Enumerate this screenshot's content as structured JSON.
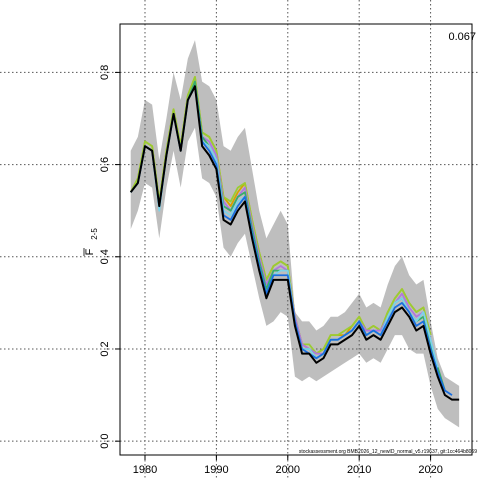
{
  "chart_data": {
    "type": "line",
    "ylabel_main": "F",
    "ylabel_sub": "2-5",
    "corner_value": "0.067",
    "footnote": "stockassessment.org BMB2026_12_newID_normal_v5.r19637, git:1cc464b8069",
    "xlim": [
      1976.5,
      2025.8
    ],
    "ylim": [
      -0.03,
      0.905
    ],
    "grid": "dotted",
    "x_ticks": [
      1980,
      1990,
      2000,
      2010,
      2020
    ],
    "y_ticks": [
      0.0,
      0.2,
      0.4,
      0.6,
      0.8
    ],
    "x_tick_labels": [
      "1980",
      "1990",
      "2000",
      "2010",
      "2020"
    ],
    "y_tick_labels": [
      "0.0",
      "0.2",
      "0.4",
      "0.6",
      "0.8"
    ],
    "years": [
      1978,
      1979,
      1980,
      1981,
      1982,
      1983,
      1984,
      1985,
      1986,
      1987,
      1988,
      1989,
      1990,
      1991,
      1992,
      1993,
      1994,
      1995,
      1996,
      1997,
      1998,
      1999,
      2000,
      2001,
      2002,
      2003,
      2004,
      2005,
      2006,
      2007,
      2008,
      2009,
      2010,
      2011,
      2012,
      2013,
      2014,
      2015,
      2016,
      2017,
      2018,
      2019,
      2020,
      2021,
      2022,
      2023,
      2024
    ],
    "band": {
      "color": "#bebebe",
      "upper": [
        0.63,
        0.66,
        0.74,
        0.73,
        0.61,
        0.7,
        0.8,
        0.74,
        0.83,
        0.87,
        0.78,
        0.77,
        0.74,
        0.64,
        0.63,
        0.66,
        0.68,
        0.59,
        0.5,
        0.44,
        0.47,
        0.5,
        0.47,
        0.28,
        0.26,
        0.26,
        0.24,
        0.25,
        0.27,
        0.27,
        0.28,
        0.3,
        0.32,
        0.29,
        0.3,
        0.29,
        0.34,
        0.38,
        0.4,
        0.36,
        0.34,
        0.35,
        0.26,
        0.18,
        0.14,
        0.13,
        0.12
      ],
      "lower": [
        0.46,
        0.5,
        0.56,
        0.55,
        0.44,
        0.55,
        0.63,
        0.55,
        0.65,
        0.68,
        0.57,
        0.56,
        0.53,
        0.42,
        0.4,
        0.43,
        0.45,
        0.38,
        0.31,
        0.25,
        0.26,
        0.28,
        0.27,
        0.14,
        0.13,
        0.14,
        0.13,
        0.14,
        0.15,
        0.16,
        0.17,
        0.18,
        0.19,
        0.17,
        0.18,
        0.17,
        0.2,
        0.23,
        0.23,
        0.2,
        0.19,
        0.19,
        0.12,
        0.07,
        0.05,
        0.04,
        0.03
      ]
    },
    "series": [
      {
        "color": "#000000",
        "end": 2024,
        "values": [
          0.54,
          0.56,
          0.64,
          0.63,
          0.51,
          0.62,
          0.71,
          0.63,
          0.74,
          0.77,
          0.64,
          0.62,
          0.59,
          0.48,
          0.47,
          0.5,
          0.52,
          0.44,
          0.37,
          0.31,
          0.35,
          0.35,
          0.35,
          0.25,
          0.19,
          0.19,
          0.17,
          0.18,
          0.21,
          0.21,
          0.22,
          0.23,
          0.25,
          0.22,
          0.23,
          0.22,
          0.25,
          0.28,
          0.29,
          0.27,
          0.24,
          0.25,
          0.19,
          0.14,
          0.1,
          0.09,
          0.09
        ]
      },
      {
        "color": "#1a6fdf",
        "end": 2023,
        "values": [
          0.54,
          0.56,
          0.64,
          0.63,
          0.51,
          0.62,
          0.71,
          0.63,
          0.74,
          0.77,
          0.65,
          0.63,
          0.6,
          0.49,
          0.48,
          0.51,
          0.53,
          0.45,
          0.38,
          0.32,
          0.36,
          0.36,
          0.36,
          0.26,
          0.2,
          0.19,
          0.18,
          0.19,
          0.22,
          0.22,
          0.23,
          0.24,
          0.26,
          0.23,
          0.24,
          0.23,
          0.26,
          0.29,
          0.3,
          0.28,
          0.25,
          0.26,
          0.2,
          0.15,
          0.11,
          0.1
        ]
      },
      {
        "color": "#37ad6b",
        "end": 2022,
        "values": [
          0.54,
          0.56,
          0.64,
          0.63,
          0.51,
          0.62,
          0.71,
          0.63,
          0.74,
          0.78,
          0.66,
          0.64,
          0.61,
          0.51,
          0.5,
          0.53,
          0.54,
          0.46,
          0.39,
          0.33,
          0.37,
          0.37,
          0.37,
          0.26,
          0.2,
          0.2,
          0.18,
          0.19,
          0.22,
          0.22,
          0.23,
          0.24,
          0.26,
          0.23,
          0.24,
          0.23,
          0.27,
          0.3,
          0.31,
          0.28,
          0.26,
          0.27,
          0.21,
          0.16,
          0.11
        ]
      },
      {
        "color": "#b177de",
        "end": 2021,
        "values": [
          0.54,
          0.56,
          0.64,
          0.63,
          0.51,
          0.62,
          0.71,
          0.63,
          0.74,
          0.78,
          0.66,
          0.65,
          0.62,
          0.52,
          0.5,
          0.53,
          0.55,
          0.47,
          0.4,
          0.34,
          0.37,
          0.38,
          0.37,
          0.27,
          0.21,
          0.2,
          0.19,
          0.19,
          0.22,
          0.22,
          0.23,
          0.24,
          0.26,
          0.24,
          0.24,
          0.24,
          0.27,
          0.3,
          0.32,
          0.29,
          0.27,
          0.28,
          0.22,
          0.16
        ]
      },
      {
        "color": "#d6a100",
        "end": 2020,
        "values": [
          0.54,
          0.57,
          0.65,
          0.64,
          0.52,
          0.63,
          0.72,
          0.64,
          0.75,
          0.79,
          0.67,
          0.66,
          0.63,
          0.53,
          0.51,
          0.54,
          0.56,
          0.48,
          0.41,
          0.35,
          0.38,
          0.39,
          0.38,
          0.27,
          0.21,
          0.2,
          0.19,
          0.2,
          0.23,
          0.23,
          0.23,
          0.25,
          0.27,
          0.24,
          0.25,
          0.24,
          0.28,
          0.31,
          0.33,
          0.3,
          0.28,
          0.29,
          0.23
        ]
      },
      {
        "color": "#7dd3e8",
        "end": 2021,
        "values": [
          0.54,
          0.56,
          0.64,
          0.63,
          0.5,
          0.62,
          0.71,
          0.63,
          0.74,
          0.77,
          0.65,
          0.64,
          0.61,
          0.5,
          0.49,
          0.52,
          0.53,
          0.45,
          0.38,
          0.32,
          0.36,
          0.37,
          0.37,
          0.26,
          0.2,
          0.2,
          0.18,
          0.19,
          0.22,
          0.22,
          0.23,
          0.24,
          0.26,
          0.23,
          0.24,
          0.23,
          0.27,
          0.3,
          0.31,
          0.28,
          0.26,
          0.28,
          0.22,
          0.16
        ]
      },
      {
        "color": "#9acd32",
        "end": 2020,
        "values": [
          0.54,
          0.57,
          0.65,
          0.64,
          0.52,
          0.63,
          0.72,
          0.64,
          0.75,
          0.79,
          0.67,
          0.66,
          0.63,
          0.53,
          0.52,
          0.55,
          0.56,
          0.48,
          0.41,
          0.35,
          0.38,
          0.39,
          0.38,
          0.27,
          0.21,
          0.21,
          0.19,
          0.2,
          0.23,
          0.23,
          0.24,
          0.25,
          0.27,
          0.24,
          0.25,
          0.24,
          0.28,
          0.31,
          0.33,
          0.3,
          0.28,
          0.29,
          0.23
        ]
      }
    ]
  }
}
